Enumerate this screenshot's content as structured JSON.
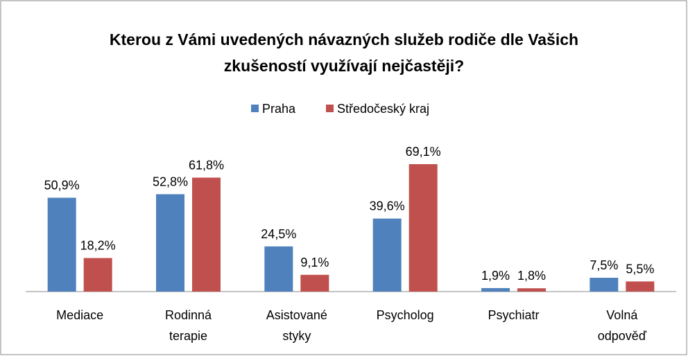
{
  "chart_data": {
    "type": "bar",
    "title": "Kterou z Vámi uvedených návazných služeb rodiče dle Vašich zkušeností využívají nejčastěji?",
    "categories": [
      "Mediace",
      "Rodinná terapie",
      "Asistované styky",
      "Psycholog",
      "Psychiatr",
      "Volná odpověď"
    ],
    "series": [
      {
        "name": "Praha",
        "color": "#4f81bd",
        "values": [
          50.9,
          52.8,
          24.5,
          39.6,
          1.9,
          7.5
        ],
        "value_labels": [
          "50,9%",
          "52,8%",
          "24,5%",
          "39,6%",
          "1,9%",
          "7,5%"
        ]
      },
      {
        "name": "Středočeský kraj",
        "color": "#c0504d",
        "values": [
          18.2,
          61.8,
          9.1,
          69.1,
          1.8,
          5.5
        ],
        "value_labels": [
          "18,2%",
          "61,8%",
          "9,1%",
          "69,1%",
          "1,8%",
          "5,5%"
        ]
      }
    ],
    "ylim": [
      0,
      80
    ],
    "legend": "top"
  }
}
